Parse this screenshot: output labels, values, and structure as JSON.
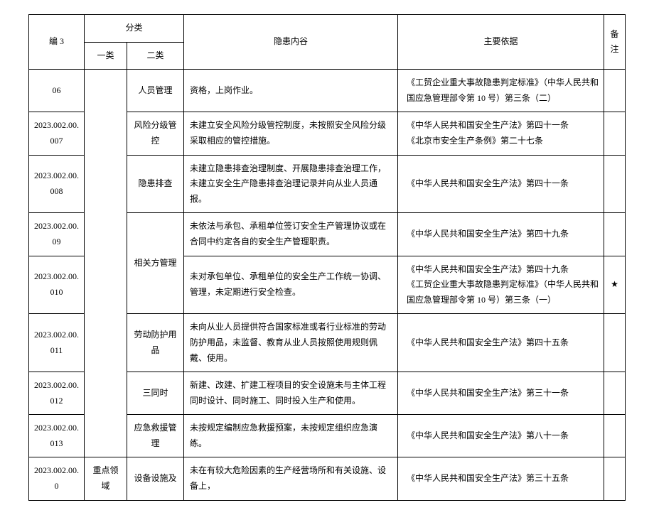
{
  "header": {
    "id": "编 3",
    "category": "分类",
    "cat1": "一类",
    "cat2": "二类",
    "desc": "隐患内谷",
    "basis": "主要依据",
    "note": "备注"
  },
  "rows": [
    {
      "id": "06",
      "cat2": "人员管理",
      "desc": "资格，上岗作业。",
      "basis": "《工贸企业重大事故隐患判定标准》（中华人民共和国应急管理部令第 10 号）第三条（二）",
      "note": ""
    },
    {
      "id": "2023.002.00.007",
      "cat2": "风险分级管控",
      "desc": "未建立安全风险分级管控制度，未按照安全风险分级采取相应的管控措施。",
      "basis": "《中华人民共和国安全生产法》第四十一条\n《北京市安全生产条例》第二十七条",
      "note": ""
    },
    {
      "id": "2023.002.00.008",
      "cat2": "隐患排查",
      "desc": "未建立隐患排查治理制度、开展隐患排查治理工作，未建立安全生产隐患排查治理记录并向从业人员通报。",
      "basis": "《中华人民共和国安全生产法》第四十一条",
      "note": ""
    },
    {
      "id": "2023.002.00.09",
      "cat2": "相关方管理",
      "desc": "未依法与承包、承租单位签订安全生产管理协议或在合同中约定各自的安全生产管理职责。",
      "basis": "《中华人民共和国安全生产法》第四十九条",
      "note": ""
    },
    {
      "id": "2023.002.00.010",
      "desc": "未对承包单位、承租单位的安全生产工作统一协调、管理，未定期进行安全检查。",
      "basis": "《中华人民共和国安全生产法》第四十九条\n《工贸企业重大事故隐患判定标准》（中华人民共和国应急管理部令第 10 号）第三条（一）",
      "note": "★"
    },
    {
      "id": "2023.002.00.011",
      "cat2": "劳动防护用品",
      "desc": "未向从业人员提供符合国家标准或者行业标准的劳动防护用品，未监督、教育从业人员按照使用规则佩戴、使用。",
      "basis": "《中华人民共和国安全生产法》第四十五条",
      "note": ""
    },
    {
      "id": "2023.002.00.012",
      "cat2": "三同时",
      "desc": "新建、改建、扩建工程项目的安全设施未与主体工程同时设计、同时施工、同时投入生产和使用。",
      "basis": "《中华人民共和国安全生产法》第三十一条",
      "note": ""
    },
    {
      "id": "2023.002.00.013",
      "cat2": "应急救援管理",
      "desc": "未按规定编制应急救援预案，未按规定组织应急演练。",
      "basis": "《中华人民共和国安全生产法》第八十一条",
      "note": ""
    },
    {
      "id": "2023.002.00.0",
      "cat1": "重点领域",
      "cat2": "设备设施及",
      "desc": "未在有较大危险因素的生产经营场所和有关设施、设备上，",
      "basis": "《中华人民共和国安全生产法》第三十五条",
      "note": ""
    }
  ]
}
